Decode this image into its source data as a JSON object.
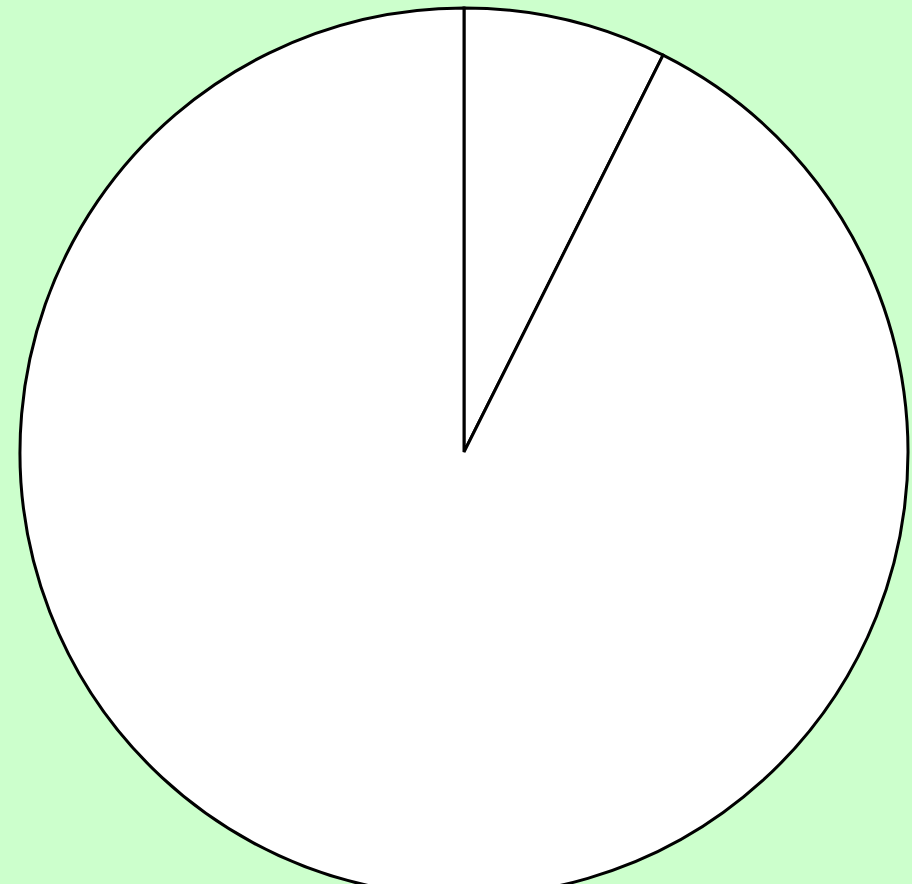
{
  "chart_data": {
    "type": "pie",
    "categories": [
      null,
      null
    ],
    "values": [
      7.4,
      92.6
    ],
    "colors": [
      "#ffffff",
      "#ffffff"
    ]
  }
}
